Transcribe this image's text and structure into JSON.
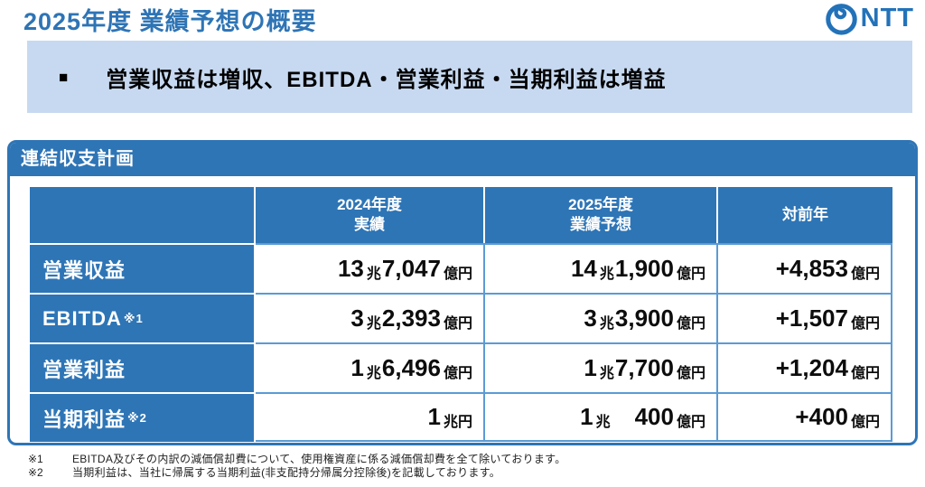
{
  "page": {
    "title": "2025年度 業績予想の概要"
  },
  "logo": {
    "text": "NTT",
    "color": "#2272B9"
  },
  "banner": {
    "bullet": "■",
    "text": "営業収益は増収、EBITDA・営業利益・当期利益は増益",
    "background": "#C7D9F1"
  },
  "panel": {
    "title": "連結収支計画",
    "accent_color": "#2E75B6",
    "grid_color": "#5B9BD5"
  },
  "table": {
    "header": {
      "col0": "",
      "col1": "2024年度\n実績",
      "col2": "2025年度\n業績予想",
      "col3": "対前年"
    },
    "rows": [
      {
        "label": "営業収益",
        "note": "",
        "fy2024": {
          "text": "13兆7,047億円",
          "segs": [
            {
              "t": "13"
            },
            {
              "t": "兆",
              "s": true
            },
            {
              "t": "7,047"
            },
            {
              "t": "億円",
              "s": true
            }
          ]
        },
        "fy2025": {
          "text": "14兆1,900億円",
          "segs": [
            {
              "t": "14"
            },
            {
              "t": "兆",
              "s": true
            },
            {
              "t": "1,900"
            },
            {
              "t": "億円",
              "s": true
            }
          ]
        },
        "yoy": {
          "text": "+4,853億円",
          "segs": [
            {
              "t": "+4,853"
            },
            {
              "t": "億円",
              "s": true
            }
          ]
        }
      },
      {
        "label": "EBITDA",
        "note": "※1",
        "fy2024": {
          "text": "3兆2,393億円",
          "segs": [
            {
              "t": "3"
            },
            {
              "t": "兆",
              "s": true
            },
            {
              "t": "2,393"
            },
            {
              "t": "億円",
              "s": true
            }
          ]
        },
        "fy2025": {
          "text": "3兆3,900億円",
          "segs": [
            {
              "t": "3"
            },
            {
              "t": "兆",
              "s": true
            },
            {
              "t": "3,900"
            },
            {
              "t": "億円",
              "s": true
            }
          ]
        },
        "yoy": {
          "text": "+1,507億円",
          "segs": [
            {
              "t": "+1,507"
            },
            {
              "t": "億円",
              "s": true
            }
          ]
        }
      },
      {
        "label": "営業利益",
        "note": "",
        "fy2024": {
          "text": "1兆6,496億円",
          "segs": [
            {
              "t": "1"
            },
            {
              "t": "兆",
              "s": true
            },
            {
              "t": "6,496"
            },
            {
              "t": "億円",
              "s": true
            }
          ]
        },
        "fy2025": {
          "text": "1兆7,700億円",
          "segs": [
            {
              "t": "1"
            },
            {
              "t": "兆",
              "s": true
            },
            {
              "t": "7,700"
            },
            {
              "t": "億円",
              "s": true
            }
          ]
        },
        "yoy": {
          "text": "+1,204億円",
          "segs": [
            {
              "t": "+1,204"
            },
            {
              "t": "億円",
              "s": true
            }
          ]
        }
      },
      {
        "label": "当期利益",
        "note": "※2",
        "fy2024": {
          "text": "1兆円",
          "segs": [
            {
              "t": "1"
            },
            {
              "t": "兆円",
              "s": true
            }
          ]
        },
        "fy2025": {
          "text": "1兆　400億円",
          "segs": [
            {
              "t": "1"
            },
            {
              "t": "兆",
              "s": true
            },
            {
              "t": "　"
            },
            {
              "t": "400"
            },
            {
              "t": "億円",
              "s": true
            }
          ]
        },
        "yoy": {
          "text": "+400億円",
          "segs": [
            {
              "t": "+400"
            },
            {
              "t": "億円",
              "s": true
            }
          ]
        }
      }
    ]
  },
  "footnotes": [
    {
      "marker": "※1",
      "text": "EBITDA及びその内訳の減価償却費について、使用権資産に係る減価償却費を全て除いております。"
    },
    {
      "marker": "※2",
      "text": "当期利益は、当社に帰属する当期利益(非支配持分帰属分控除後)を記載しております。"
    }
  ]
}
